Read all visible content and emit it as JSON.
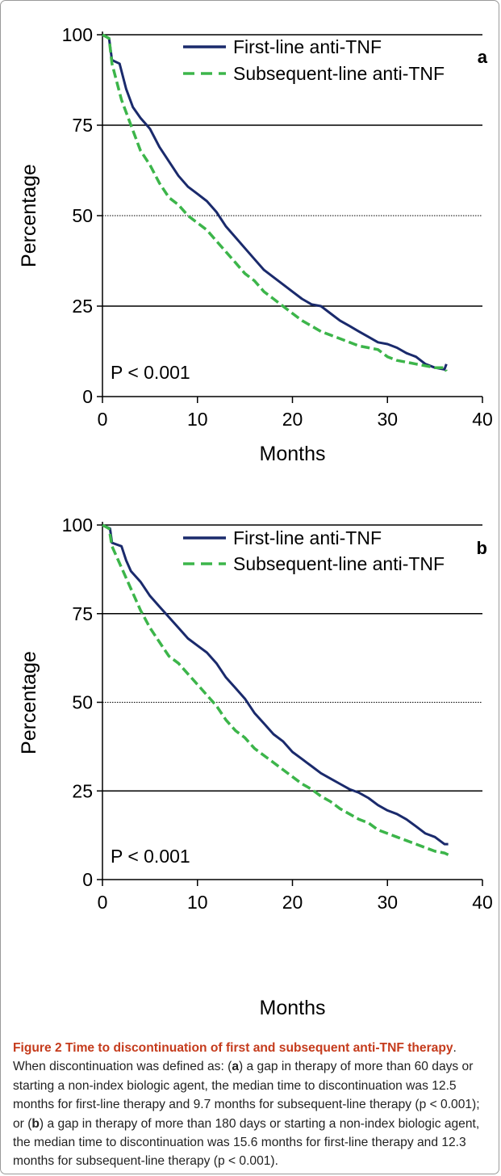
{
  "chart_data": [
    {
      "type": "line",
      "panel": "a",
      "xlabel": "Months",
      "ylabel": "Percentage",
      "xlim": [
        0,
        40
      ],
      "ylim": [
        0,
        100
      ],
      "xticks": [
        "0",
        "10",
        "20",
        "30",
        "40"
      ],
      "yticks": [
        "0",
        "25",
        "50",
        "75",
        "100"
      ],
      "annotation": "P < 0.001",
      "legend_position": "top-right",
      "series": [
        {
          "name": "First-line anti-TNF",
          "color": "#1a2a6c",
          "style": "solid",
          "points": [
            [
              0,
              100
            ],
            [
              0.7,
              99
            ],
            [
              1,
              93
            ],
            [
              1.8,
              92
            ],
            [
              2.5,
              85
            ],
            [
              3.2,
              80
            ],
            [
              4,
              77
            ],
            [
              5,
              74
            ],
            [
              6,
              69
            ],
            [
              7,
              65
            ],
            [
              8,
              61
            ],
            [
              9,
              58
            ],
            [
              10,
              56
            ],
            [
              11,
              54
            ],
            [
              12,
              51
            ],
            [
              13,
              47
            ],
            [
              14,
              44
            ],
            [
              15,
              41
            ],
            [
              16,
              38
            ],
            [
              17,
              35
            ],
            [
              18,
              33
            ],
            [
              19,
              31
            ],
            [
              20,
              29
            ],
            [
              21,
              27
            ],
            [
              22,
              25.5
            ],
            [
              23,
              25
            ],
            [
              24,
              23
            ],
            [
              25,
              21
            ],
            [
              26,
              19.5
            ],
            [
              27,
              18
            ],
            [
              28,
              16.5
            ],
            [
              29,
              15
            ],
            [
              30,
              14.5
            ],
            [
              31,
              13.5
            ],
            [
              32,
              12
            ],
            [
              33,
              11
            ],
            [
              34,
              9
            ],
            [
              35,
              8
            ],
            [
              36,
              7.5
            ],
            [
              36.2,
              9
            ]
          ]
        },
        {
          "name": "Subsequent-line anti-TNF",
          "color": "#3cb54a",
          "style": "dashed",
          "points": [
            [
              0,
              100
            ],
            [
              0.7,
              99
            ],
            [
              1,
              92
            ],
            [
              2,
              82
            ],
            [
              3,
              75
            ],
            [
              4,
              68
            ],
            [
              5,
              64
            ],
            [
              6,
              59
            ],
            [
              7,
              55
            ],
            [
              8,
              53
            ],
            [
              9,
              50
            ],
            [
              10,
              48
            ],
            [
              11,
              46
            ],
            [
              12,
              43
            ],
            [
              13,
              40
            ],
            [
              14,
              37
            ],
            [
              15,
              34
            ],
            [
              16,
              32
            ],
            [
              17,
              29
            ],
            [
              18,
              27
            ],
            [
              19,
              25
            ],
            [
              20,
              23
            ],
            [
              21,
              21
            ],
            [
              22,
              19.5
            ],
            [
              23,
              18
            ],
            [
              24,
              17
            ],
            [
              25,
              16
            ],
            [
              26,
              15
            ],
            [
              27,
              14
            ],
            [
              28,
              13.5
            ],
            [
              29,
              13
            ],
            [
              30,
              11
            ],
            [
              31,
              10
            ],
            [
              32,
              9.5
            ],
            [
              33,
              9
            ],
            [
              34,
              8.5
            ],
            [
              35,
              8
            ],
            [
              36,
              8
            ],
            [
              36.2,
              7
            ]
          ]
        }
      ]
    },
    {
      "type": "line",
      "panel": "b",
      "xlabel": "Months",
      "ylabel": "Percentage",
      "xlim": [
        0,
        40
      ],
      "ylim": [
        0,
        100
      ],
      "xticks": [
        "0",
        "10",
        "20",
        "30",
        "40"
      ],
      "yticks": [
        "0",
        "25",
        "50",
        "75",
        "100"
      ],
      "annotation": "P < 0.001",
      "legend_position": "top-right",
      "series": [
        {
          "name": "First-line anti-TNF",
          "color": "#1a2a6c",
          "style": "solid",
          "points": [
            [
              0,
              100
            ],
            [
              0.8,
              99
            ],
            [
              1,
              95
            ],
            [
              2,
              94
            ],
            [
              2.5,
              90
            ],
            [
              3,
              87
            ],
            [
              4,
              84
            ],
            [
              5,
              80
            ],
            [
              6,
              77
            ],
            [
              7,
              74
            ],
            [
              8,
              71
            ],
            [
              9,
              68
            ],
            [
              10,
              66
            ],
            [
              11,
              64
            ],
            [
              12,
              61
            ],
            [
              13,
              57
            ],
            [
              14,
              54
            ],
            [
              15,
              51
            ],
            [
              16,
              47
            ],
            [
              17,
              44
            ],
            [
              18,
              41
            ],
            [
              19,
              39
            ],
            [
              20,
              36
            ],
            [
              21,
              34
            ],
            [
              22,
              32
            ],
            [
              23,
              30
            ],
            [
              24,
              28.5
            ],
            [
              25,
              27
            ],
            [
              26,
              25.5
            ],
            [
              27,
              24.5
            ],
            [
              28,
              23
            ],
            [
              29,
              21
            ],
            [
              30,
              19.5
            ],
            [
              31,
              18.5
            ],
            [
              32,
              17
            ],
            [
              33,
              15
            ],
            [
              34,
              13
            ],
            [
              35,
              12
            ],
            [
              36,
              10
            ],
            [
              36.4,
              10
            ]
          ]
        },
        {
          "name": "Subsequent-line anti-TNF",
          "color": "#3cb54a",
          "style": "dashed",
          "points": [
            [
              0,
              100
            ],
            [
              0.7,
              99
            ],
            [
              1,
              94
            ],
            [
              2,
              88
            ],
            [
              3,
              82
            ],
            [
              4,
              76
            ],
            [
              5,
              71
            ],
            [
              6,
              67
            ],
            [
              7,
              63
            ],
            [
              8,
              61
            ],
            [
              9,
              58
            ],
            [
              10,
              55
            ],
            [
              11,
              52
            ],
            [
              12,
              49
            ],
            [
              13,
              45
            ],
            [
              14,
              42
            ],
            [
              15,
              40
            ],
            [
              16,
              37
            ],
            [
              17,
              35
            ],
            [
              18,
              33
            ],
            [
              19,
              31
            ],
            [
              20,
              29
            ],
            [
              21,
              27
            ],
            [
              22,
              25.5
            ],
            [
              23,
              23.5
            ],
            [
              24,
              22
            ],
            [
              25,
              20
            ],
            [
              26,
              18.5
            ],
            [
              27,
              17
            ],
            [
              28,
              16
            ],
            [
              29,
              14
            ],
            [
              30,
              13
            ],
            [
              31,
              12
            ],
            [
              32,
              11
            ],
            [
              33,
              10
            ],
            [
              34,
              9
            ],
            [
              35,
              8
            ],
            [
              36,
              7.5
            ],
            [
              36.4,
              7
            ]
          ]
        }
      ]
    }
  ],
  "legend_labels": [
    "First-line anti-TNF",
    "Subsequent-line anti-TNF"
  ],
  "caption": {
    "title": "Figure 2 Time to discontinuation of first and subsequent anti-TNF therapy",
    "part1": ". When discontinuation was defined as: (",
    "label_a": "a",
    "part2": ") a gap in therapy of more than 60 days or starting a non-index biologic agent, the median time to discontinuation was 12.5 months for first-line therapy and 9.7 months for subsequent-line therapy (p < 0.001); or (",
    "label_b": "b",
    "part3": ") a gap in therapy of more than 180 days or starting a non-index biologic agent, the median time to discontinuation was 15.6 months for first-line therapy and 12.3 months for subsequent-line therapy (p < 0.001)."
  }
}
